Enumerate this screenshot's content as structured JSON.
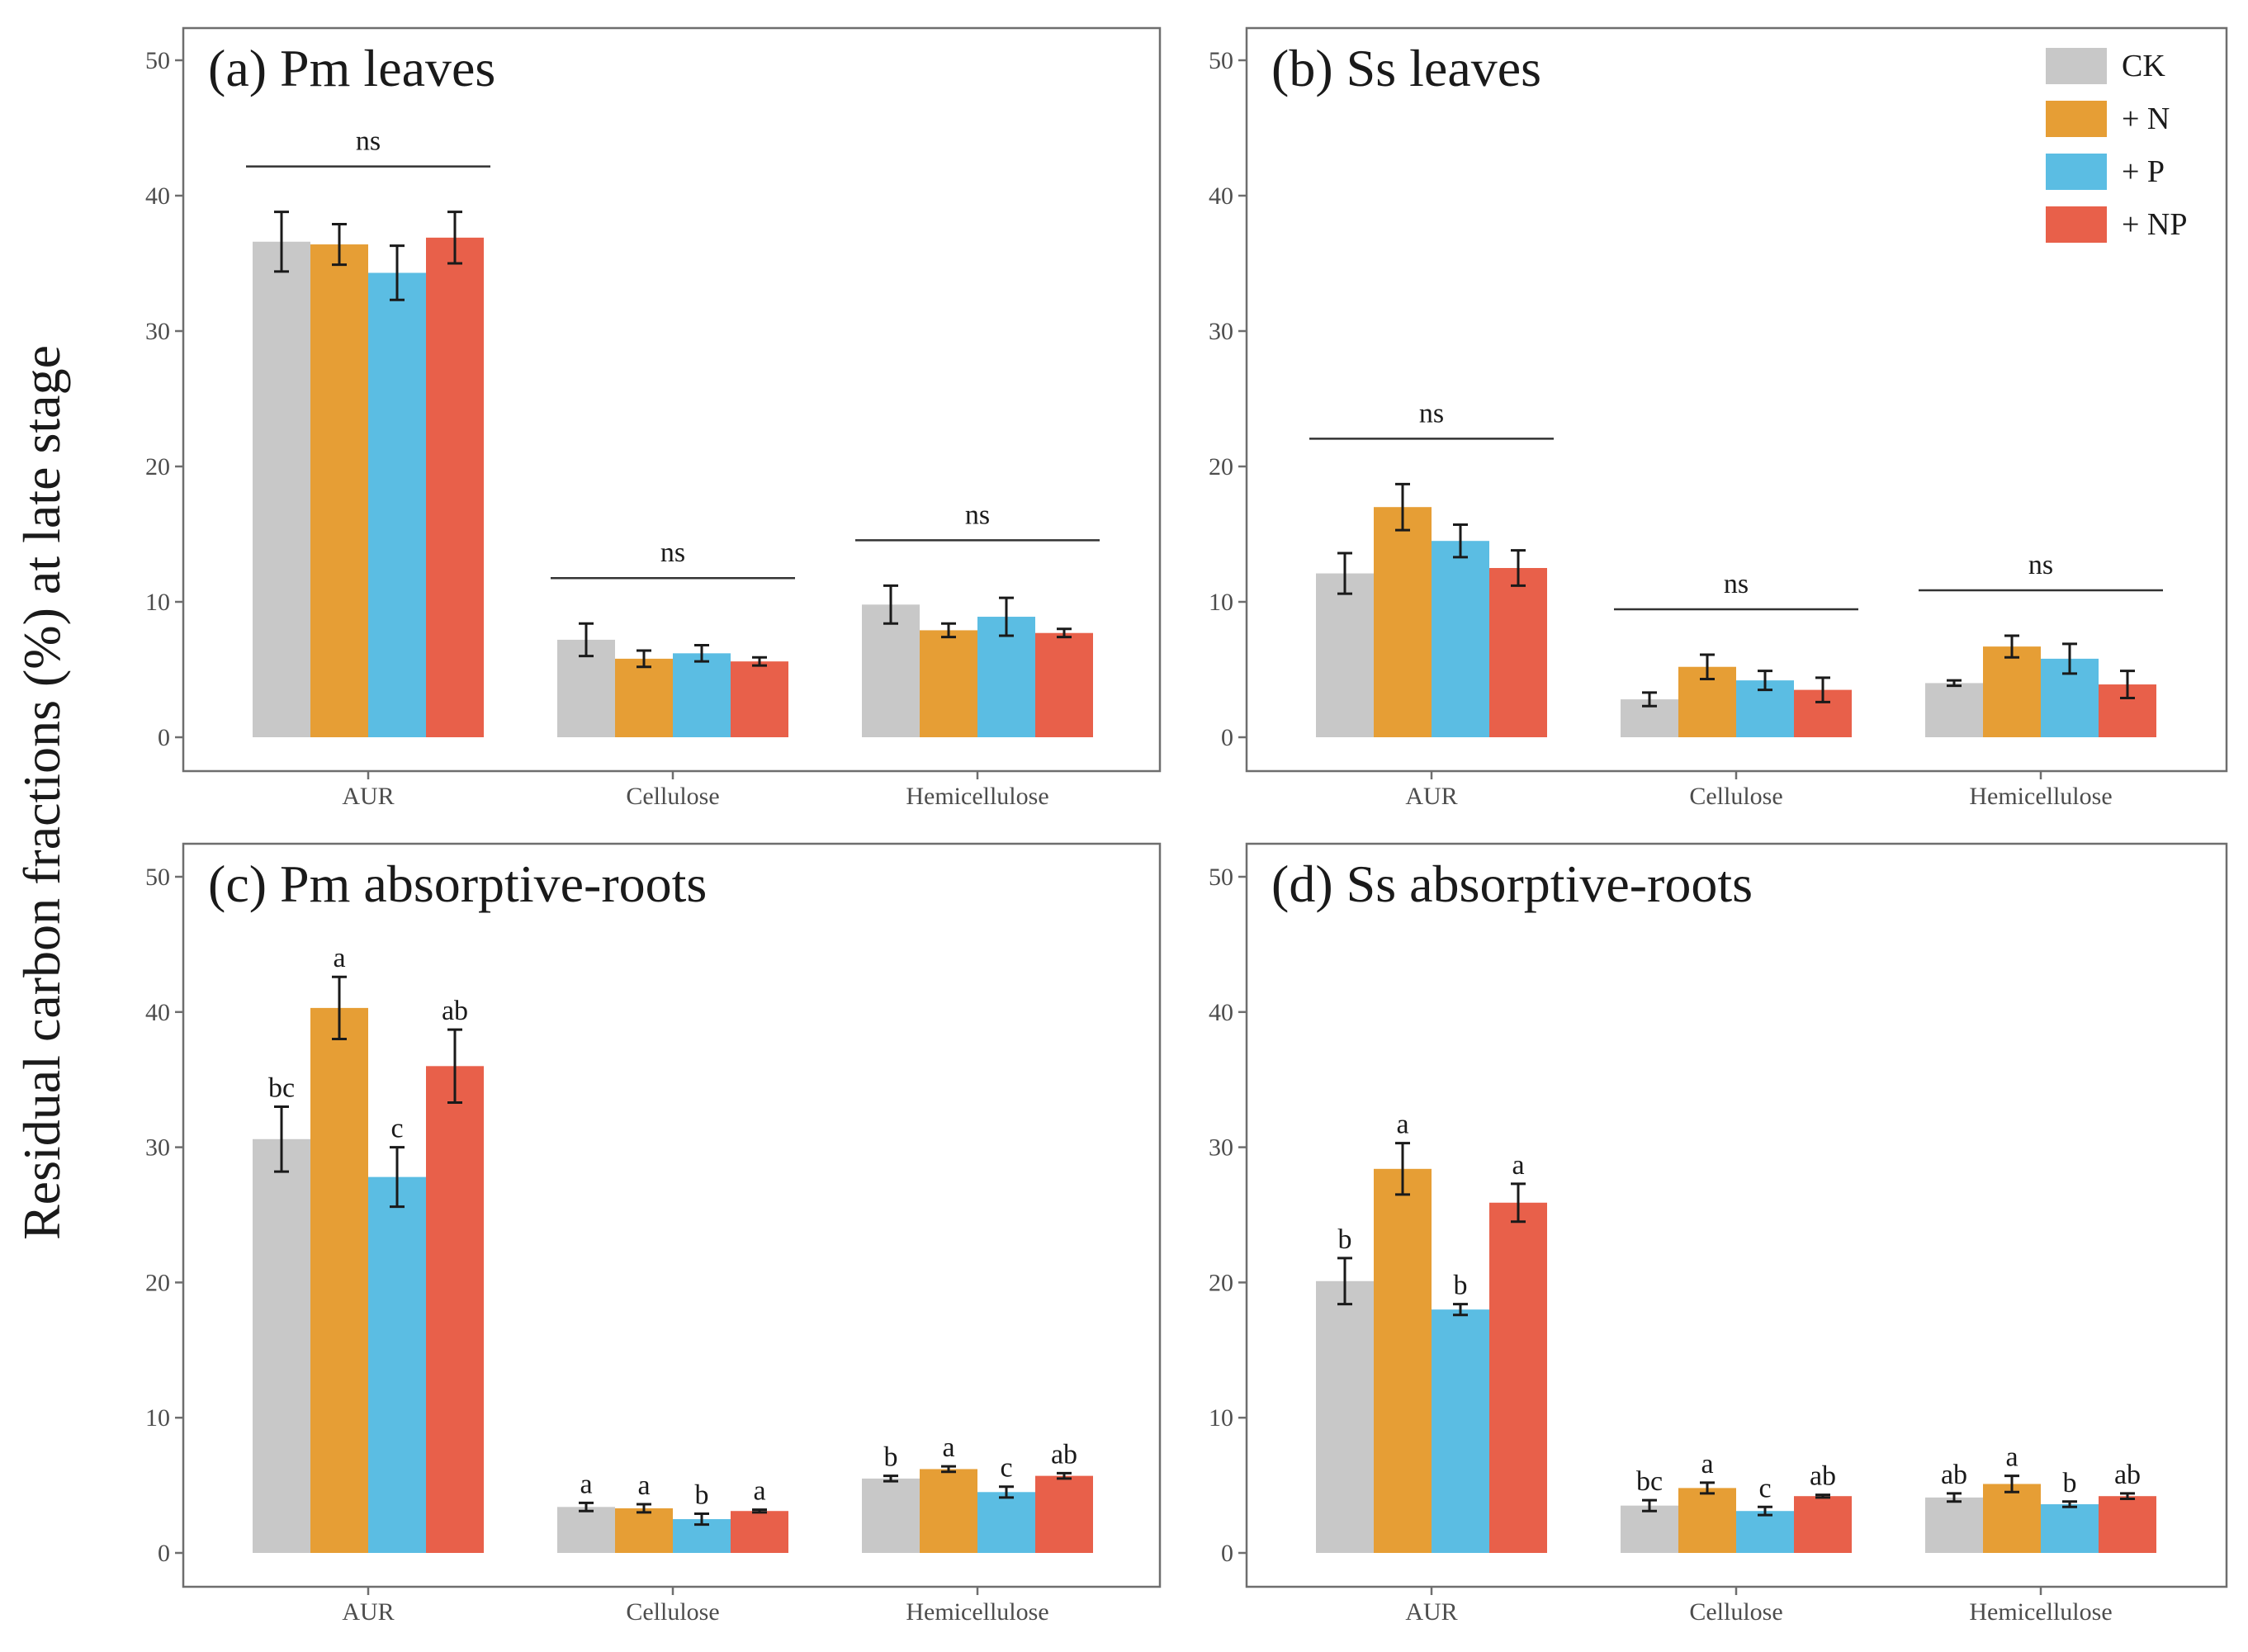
{
  "figure": {
    "ylabel": "Residual carbon fractions (%) at late stage"
  },
  "legend": [
    {
      "label": "CK",
      "color": "#c8c8c8"
    },
    {
      "label": "+ N",
      "color": "#e69e35"
    },
    {
      "label": "+ P",
      "color": "#5bbde3"
    },
    {
      "label": "+ NP",
      "color": "#e8604a"
    }
  ],
  "chart_data": [
    {
      "type": "bar",
      "title": "(a) Pm leaves",
      "categories": [
        "AUR",
        "Cellulose",
        "Hemicellulose"
      ],
      "ylim": [
        0,
        50
      ],
      "yticks": [
        0,
        10,
        20,
        30,
        40,
        50
      ],
      "series": [
        {
          "name": "CK",
          "values": [
            36.6,
            7.2,
            9.8
          ],
          "errors": [
            2.2,
            1.2,
            1.4
          ]
        },
        {
          "name": "+ N",
          "values": [
            36.4,
            5.8,
            7.9
          ],
          "errors": [
            1.5,
            0.6,
            0.5
          ]
        },
        {
          "name": "+ P",
          "values": [
            34.3,
            6.2,
            8.9
          ],
          "errors": [
            2.0,
            0.6,
            1.4
          ]
        },
        {
          "name": "+ NP",
          "values": [
            36.9,
            5.6,
            7.7
          ],
          "errors": [
            1.9,
            0.3,
            0.3
          ]
        }
      ],
      "group_significance": [
        "ns",
        "ns",
        "ns"
      ],
      "bar_letters": null
    },
    {
      "type": "bar",
      "title": "(b) Ss leaves",
      "categories": [
        "AUR",
        "Cellulose",
        "Hemicellulose"
      ],
      "ylim": [
        0,
        50
      ],
      "yticks": [
        0,
        10,
        20,
        30,
        40,
        50
      ],
      "series": [
        {
          "name": "CK",
          "values": [
            12.1,
            2.8,
            4.0
          ],
          "errors": [
            1.5,
            0.5,
            0.2
          ]
        },
        {
          "name": "+ N",
          "values": [
            17.0,
            5.2,
            6.7
          ],
          "errors": [
            1.7,
            0.9,
            0.8
          ]
        },
        {
          "name": "+ P",
          "values": [
            14.5,
            4.2,
            5.8
          ],
          "errors": [
            1.2,
            0.7,
            1.1
          ]
        },
        {
          "name": "+ NP",
          "values": [
            12.5,
            3.5,
            3.9
          ],
          "errors": [
            1.3,
            0.9,
            1.0
          ]
        }
      ],
      "group_significance": [
        "ns",
        "ns",
        "ns"
      ],
      "bar_letters": null
    },
    {
      "type": "bar",
      "title": "(c) Pm absorptive-roots",
      "categories": [
        "AUR",
        "Cellulose",
        "Hemicellulose"
      ],
      "ylim": [
        0,
        50
      ],
      "yticks": [
        0,
        10,
        20,
        30,
        40,
        50
      ],
      "series": [
        {
          "name": "CK",
          "values": [
            30.6,
            3.4,
            5.5
          ],
          "errors": [
            2.4,
            0.3,
            0.2
          ]
        },
        {
          "name": "+ N",
          "values": [
            40.3,
            3.3,
            6.2
          ],
          "errors": [
            2.3,
            0.3,
            0.2
          ]
        },
        {
          "name": "+ P",
          "values": [
            27.8,
            2.5,
            4.5
          ],
          "errors": [
            2.2,
            0.4,
            0.4
          ]
        },
        {
          "name": "+ NP",
          "values": [
            36.0,
            3.1,
            5.7
          ],
          "errors": [
            2.7,
            0.1,
            0.2
          ]
        }
      ],
      "group_significance": null,
      "bar_letters": [
        [
          "bc",
          "a",
          "c",
          "ab"
        ],
        [
          "a",
          "a",
          "b",
          "a"
        ],
        [
          "b",
          "a",
          "c",
          "ab"
        ]
      ]
    },
    {
      "type": "bar",
      "title": "(d) Ss absorptive-roots",
      "categories": [
        "AUR",
        "Cellulose",
        "Hemicellulose"
      ],
      "ylim": [
        0,
        50
      ],
      "yticks": [
        0,
        10,
        20,
        30,
        40,
        50
      ],
      "series": [
        {
          "name": "CK",
          "values": [
            20.1,
            3.5,
            4.1
          ],
          "errors": [
            1.7,
            0.4,
            0.3
          ]
        },
        {
          "name": "+ N",
          "values": [
            28.4,
            4.8,
            5.1
          ],
          "errors": [
            1.9,
            0.4,
            0.6
          ]
        },
        {
          "name": "+ P",
          "values": [
            18.0,
            3.1,
            3.6
          ],
          "errors": [
            0.4,
            0.3,
            0.2
          ]
        },
        {
          "name": "+ NP",
          "values": [
            25.9,
            4.2,
            4.2
          ],
          "errors": [
            1.4,
            0.1,
            0.2
          ]
        }
      ],
      "group_significance": null,
      "bar_letters": [
        [
          "b",
          "a",
          "b",
          "a"
        ],
        [
          "bc",
          "a",
          "c",
          "ab"
        ],
        [
          "ab",
          "a",
          "b",
          "ab"
        ]
      ]
    }
  ]
}
